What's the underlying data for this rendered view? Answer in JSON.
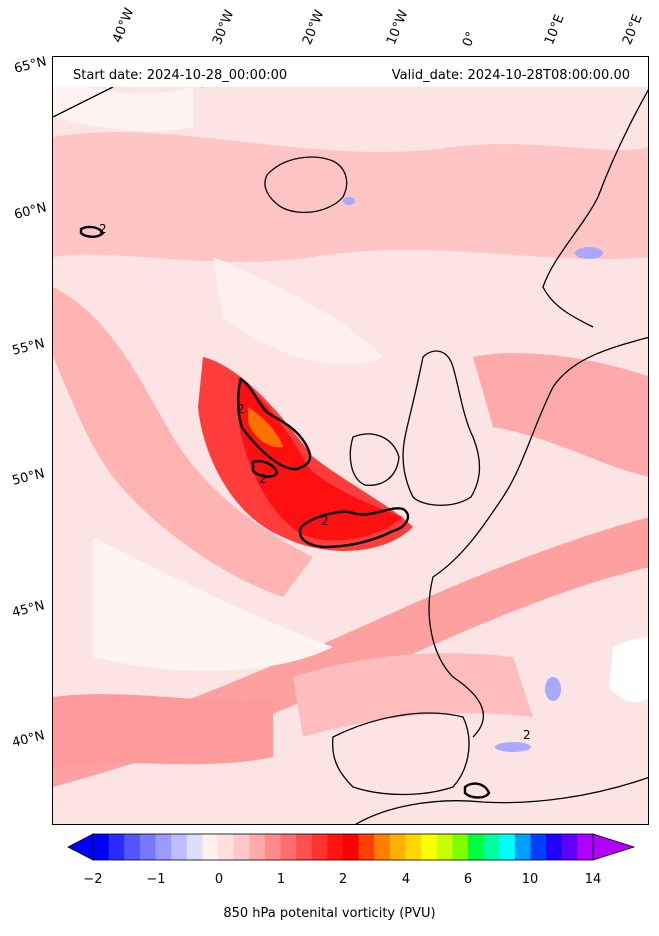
{
  "header": {
    "start_date": "Start date: 2024-10-28_00:00:00",
    "valid_date": "Valid_date: 2024-10-28T08:00:00.00"
  },
  "axes": {
    "lon_labels": [
      "40°W",
      "30°W",
      "20°W",
      "10°W",
      "0°",
      "10°E",
      "20°E"
    ],
    "lat_labels": [
      "65°N",
      "60°N",
      "55°N",
      "50°N",
      "45°N",
      "40°N"
    ]
  },
  "contour": {
    "level_label": "2"
  },
  "colorbar": {
    "title": "850 hPa potenital vorticity (PVU)",
    "tick_labels": [
      "−2",
      "−1",
      "0",
      "1",
      "2",
      "4",
      "6",
      "10",
      "14"
    ],
    "colors": [
      "#0000ff",
      "#2b2bff",
      "#5555ff",
      "#7878ff",
      "#9a9aff",
      "#bcbcff",
      "#dedeff",
      "#fff0f0",
      "#ffe0e0",
      "#ffc8c8",
      "#ffaaaa",
      "#ff8c8c",
      "#ff6e6e",
      "#ff5050",
      "#ff3232",
      "#ff1414",
      "#ff0000",
      "#ff4000",
      "#ff7f00",
      "#ffb000",
      "#ffd700",
      "#ffff00",
      "#c8ff00",
      "#80ff00",
      "#00ff40",
      "#00ff9f",
      "#00ffff",
      "#00a0ff",
      "#0040ff",
      "#2000ff",
      "#6000ff",
      "#b000ff"
    ]
  },
  "colors": {
    "land_outline": "#000000",
    "pv_low": "#fde7e7",
    "pv_mid": "#ff8080",
    "pv_high": "#ff0000"
  }
}
